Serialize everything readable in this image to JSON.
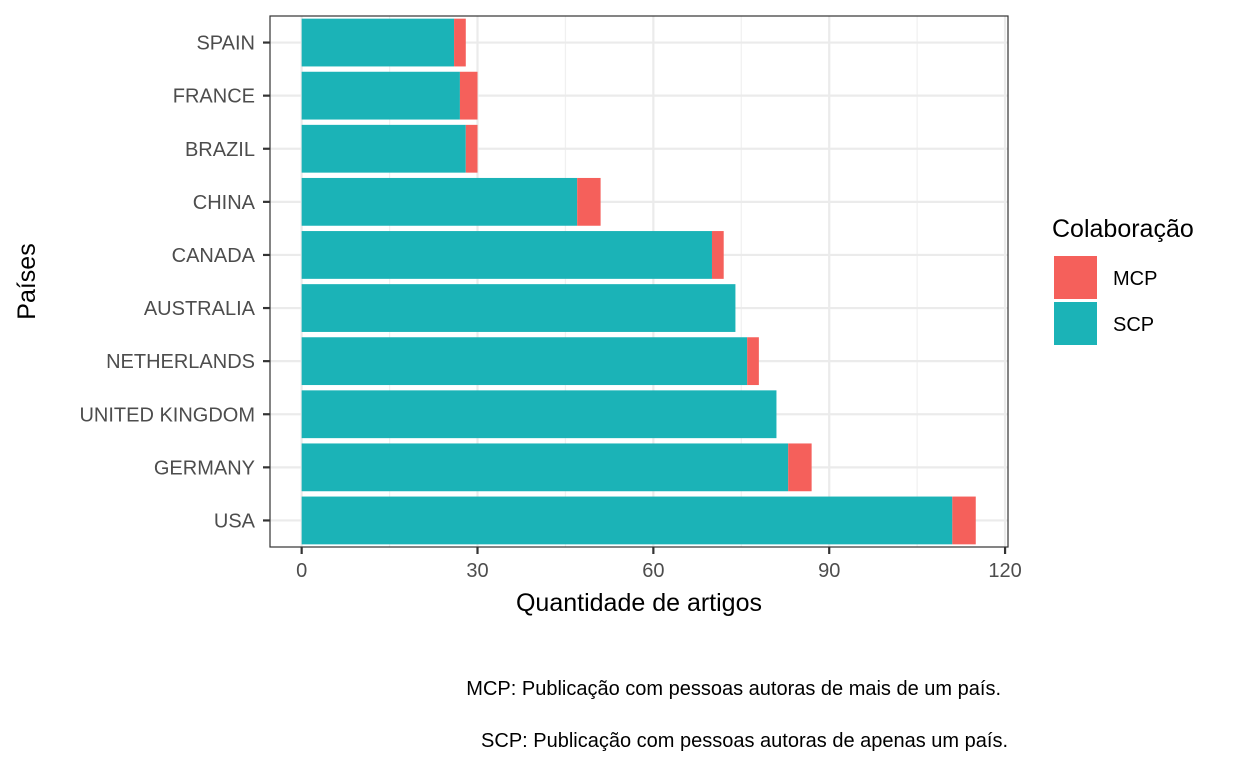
{
  "chart_data": {
    "type": "bar",
    "orientation": "horizontal",
    "stacked": true,
    "categories": [
      "USA",
      "GERMANY",
      "UNITED KINGDOM",
      "NETHERLANDS",
      "AUSTRALIA",
      "CANADA",
      "CHINA",
      "BRAZIL",
      "FRANCE",
      "SPAIN"
    ],
    "series": [
      {
        "name": "SCP",
        "color": "#1bb3b7",
        "values": [
          111,
          83,
          81,
          76,
          74,
          70,
          47,
          28,
          27,
          26
        ]
      },
      {
        "name": "MCP",
        "color": "#f5605b",
        "values": [
          4,
          4,
          0,
          2,
          0,
          2,
          4,
          2,
          3,
          2
        ]
      }
    ],
    "xlabel": "Quantidade de artigos",
    "ylabel": "Países",
    "xlim": [
      -5.4,
      120.5
    ],
    "xticks": [
      0,
      30,
      60,
      90,
      120
    ],
    "grid": true,
    "legend": {
      "title": "Colaboração",
      "position": "right",
      "items": [
        {
          "label": "MCP",
          "color": "#f5605b"
        },
        {
          "label": "SCP",
          "color": "#1bb3b7"
        }
      ]
    }
  },
  "captions": {
    "mcp": "MCP: Publicação com pessoas autoras de mais de um país.",
    "scp": "SCP: Publicação com pessoas autoras de apenas um país."
  }
}
